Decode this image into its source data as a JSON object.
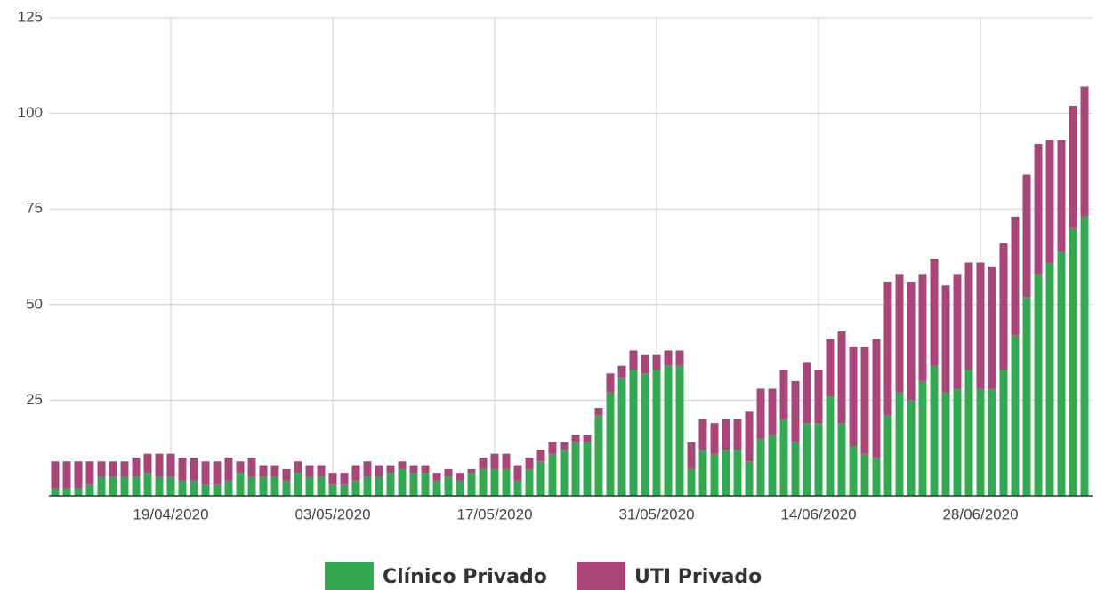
{
  "chart_data": {
    "type": "stacked_bar",
    "categories": [
      null,
      null,
      null,
      null,
      null,
      null,
      null,
      null,
      null,
      null,
      "19/04/2020",
      null,
      null,
      null,
      null,
      null,
      null,
      null,
      null,
      null,
      null,
      null,
      null,
      null,
      "03/05/2020",
      null,
      null,
      null,
      null,
      null,
      null,
      null,
      null,
      null,
      null,
      null,
      null,
      null,
      "17/05/2020",
      null,
      null,
      null,
      null,
      null,
      null,
      null,
      null,
      null,
      null,
      null,
      null,
      null,
      "31/05/2020",
      null,
      null,
      null,
      null,
      null,
      null,
      null,
      null,
      null,
      null,
      null,
      null,
      null,
      "14/06/2020",
      null,
      null,
      null,
      null,
      null,
      null,
      null,
      null,
      null,
      null,
      null,
      null,
      null,
      "28/06/2020",
      null,
      null,
      null,
      null,
      null,
      null,
      null,
      null,
      null
    ],
    "series": [
      {
        "name": "Clínico Privado",
        "color": "#34a853",
        "values": [
          2,
          2,
          2,
          3,
          5,
          5,
          5,
          5,
          6,
          5,
          5,
          4,
          4,
          3,
          3,
          4,
          6,
          5,
          5,
          5,
          4,
          6,
          5,
          5,
          3,
          3,
          4,
          5,
          5,
          6,
          7,
          6,
          6,
          4,
          5,
          4,
          6,
          7,
          7,
          7,
          4,
          7,
          9,
          11,
          12,
          14,
          14,
          21,
          27,
          31,
          33,
          32,
          33,
          34,
          34,
          7,
          12,
          11,
          12,
          12,
          9,
          15,
          16,
          20,
          14,
          19,
          19,
          26,
          19,
          13,
          11,
          10,
          21,
          27,
          25,
          30,
          34,
          27,
          28,
          33,
          28,
          28,
          33,
          42,
          52,
          58,
          61,
          64,
          70,
          73
        ]
      },
      {
        "name": "UTI Privado",
        "color": "#a8467a",
        "values": [
          7,
          7,
          7,
          6,
          4,
          4,
          4,
          5,
          5,
          6,
          6,
          6,
          6,
          6,
          6,
          6,
          3,
          5,
          3,
          3,
          3,
          3,
          3,
          3,
          3,
          3,
          4,
          4,
          3,
          2,
          2,
          2,
          2,
          2,
          2,
          2,
          1,
          3,
          4,
          4,
          4,
          3,
          3,
          3,
          2,
          2,
          2,
          2,
          5,
          3,
          5,
          5,
          4,
          4,
          4,
          7,
          8,
          8,
          8,
          8,
          13,
          13,
          12,
          13,
          16,
          16,
          14,
          15,
          24,
          26,
          28,
          31,
          35,
          31,
          31,
          28,
          28,
          28,
          30,
          28,
          33,
          32,
          33,
          31,
          32,
          34,
          32,
          29,
          32,
          34
        ]
      }
    ],
    "ylim": [
      0,
      125
    ],
    "yticks": [
      25,
      50,
      75,
      100,
      125
    ],
    "grid": true
  }
}
